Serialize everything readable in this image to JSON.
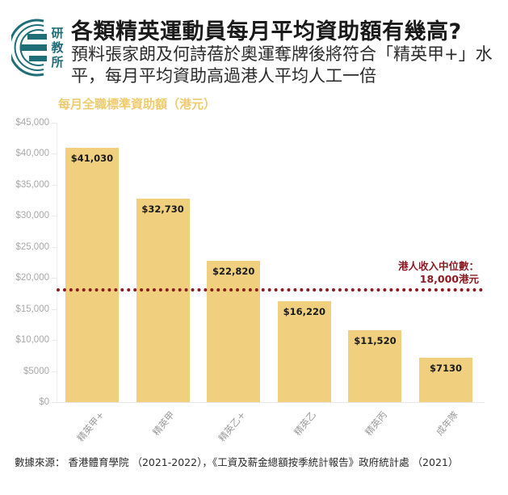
{
  "header": {
    "logo_text": [
      "研",
      "教",
      "所"
    ],
    "title": "各類精英運動員每月平均資助額有幾高?",
    "subtitle": "預料張家朗及何詩蓓於奧運奪牌後將符合「精英甲+」水平，每月平均資助高過港人平均人工一倍"
  },
  "chart": {
    "title": "每月全職標準資助額（港元）",
    "median_label_line1": "港人收入中位數：",
    "median_label_line2": "18,000港元"
  },
  "source": {
    "text": "數據來源： 香港體育學院 （2021-2022），《工資及薪金總額按季統計報告》政府統計處 （2021）"
  },
  "colors": {
    "bar": "#F0D07E",
    "chart_title": "#EFCB6E",
    "median_line": "#8B1A22",
    "logo": "#1E6E78"
  },
  "chart_data": {
    "type": "bar",
    "title": "每月全職標準資助額（港元）",
    "xlabel": "",
    "ylabel": "",
    "categories": [
      "精英甲+",
      "精英甲",
      "精英乙+",
      "精英乙",
      "精英丙",
      "成年隊"
    ],
    "values": [
      41030,
      32730,
      22820,
      16220,
      11520,
      7130
    ],
    "value_labels": [
      "$41,030",
      "$32,730",
      "$22,820",
      "$16,220",
      "$11,520",
      "$7130"
    ],
    "ylim": [
      0,
      45000
    ],
    "yticks": [
      0,
      5000,
      10000,
      15000,
      20000,
      25000,
      30000,
      35000,
      40000,
      45000
    ],
    "ytick_labels": [
      "$0",
      "$5000",
      "$10,000",
      "$15,000",
      "$20,000",
      "$25,000",
      "$30,000",
      "$35,000",
      "$40,000",
      "$45,000"
    ],
    "grid": false,
    "annotations": [
      {
        "type": "hline",
        "y": 18000,
        "style": "dotted",
        "color": "#8B1A22",
        "label": "港人收入中位數：18,000港元"
      }
    ]
  }
}
